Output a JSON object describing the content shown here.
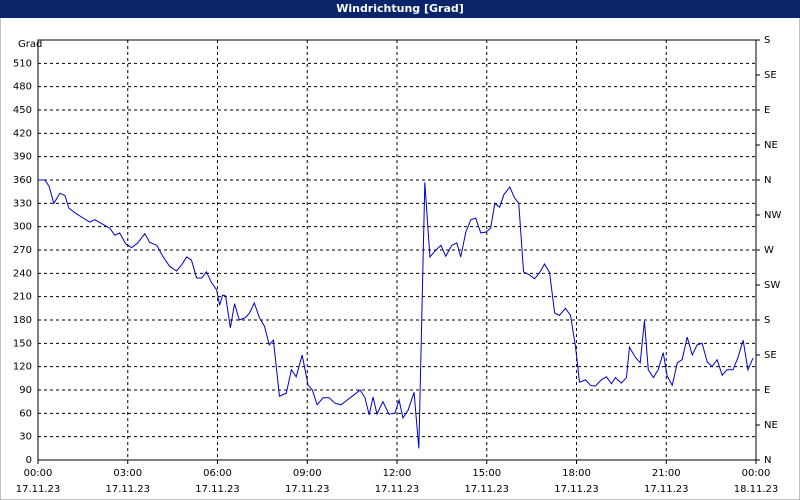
{
  "chart_data": {
    "type": "line",
    "title": "Windrichtung [Grad]",
    "y_label": "Grad",
    "color": "#0000cc",
    "grid": true,
    "xlim": [
      0,
      24
    ],
    "ylim": [
      0,
      540
    ],
    "y2lim": [
      0,
      540
    ],
    "xticks": [
      {
        "value": 0,
        "label": "00:00"
      },
      {
        "value": 3,
        "label": "03:00"
      },
      {
        "value": 6,
        "label": "06:00"
      },
      {
        "value": 9,
        "label": "09:00"
      },
      {
        "value": 12,
        "label": "12:00"
      },
      {
        "value": 15,
        "label": "15:00"
      },
      {
        "value": 18,
        "label": "18:00"
      },
      {
        "value": 21,
        "label": "21:00"
      },
      {
        "value": 24,
        "label": "00:00"
      }
    ],
    "xtick_dates": [
      "17.11.23",
      "17.11.23",
      "17.11.23",
      "17.11.23",
      "17.11.23",
      "17.11.23",
      "17.11.23",
      "17.11.23",
      "18.11.23"
    ],
    "yticks": [
      0,
      30,
      60,
      90,
      120,
      150,
      180,
      210,
      240,
      270,
      300,
      330,
      360,
      390,
      420,
      450,
      480,
      510
    ],
    "y2ticks": [
      {
        "value": 0,
        "label": "N"
      },
      {
        "value": 45,
        "label": "NE"
      },
      {
        "value": 90,
        "label": "E"
      },
      {
        "value": 135,
        "label": "SE"
      },
      {
        "value": 180,
        "label": "S"
      },
      {
        "value": 225,
        "label": "SW"
      },
      {
        "value": 270,
        "label": "W"
      },
      {
        "value": 315,
        "label": "NW"
      },
      {
        "value": 360,
        "label": "N"
      },
      {
        "value": 405,
        "label": "NE"
      },
      {
        "value": 450,
        "label": "E"
      },
      {
        "value": 495,
        "label": "SE"
      },
      {
        "value": 540,
        "label": "S"
      }
    ],
    "x": [
      0,
      0.23,
      0.37,
      0.53,
      0.73,
      0.9,
      1.03,
      1.23,
      1.47,
      1.73,
      1.9,
      2.17,
      2.4,
      2.57,
      2.73,
      2.93,
      3.13,
      3.33,
      3.57,
      3.73,
      3.97,
      4.17,
      4.4,
      4.63,
      4.8,
      4.97,
      5.13,
      5.3,
      5.47,
      5.63,
      5.8,
      5.97,
      6.07,
      6.17,
      6.27,
      6.43,
      6.57,
      6.73,
      6.93,
      7.07,
      7.23,
      7.4,
      7.57,
      7.73,
      7.87,
      8.07,
      8.3,
      8.47,
      8.63,
      8.83,
      9.03,
      9.17,
      9.33,
      9.53,
      9.73,
      9.93,
      10.13,
      10.33,
      10.57,
      10.77,
      10.93,
      11.07,
      11.2,
      11.33,
      11.53,
      11.73,
      11.93,
      12.07,
      12.2,
      12.37,
      12.57,
      12.73,
      12.93,
      13.1,
      13.3,
      13.47,
      13.63,
      13.83,
      14,
      14.13,
      14.3,
      14.47,
      14.63,
      14.8,
      14.97,
      15.13,
      15.27,
      15.43,
      15.57,
      15.77,
      15.93,
      16.07,
      16.23,
      16.43,
      16.6,
      16.77,
      16.93,
      17.1,
      17.27,
      17.43,
      17.63,
      17.8,
      17.97,
      18.1,
      18.3,
      18.47,
      18.63,
      18.83,
      19,
      19.17,
      19.3,
      19.5,
      19.67,
      19.77,
      19.97,
      20.13,
      20.27,
      20.4,
      20.57,
      20.73,
      20.9,
      21.03,
      21.2,
      21.37,
      21.53,
      21.7,
      21.87,
      22.03,
      22.2,
      22.37,
      22.53,
      22.7,
      22.87,
      23.03,
      23.23,
      23.4,
      23.57,
      23.73,
      23.9
    ],
    "values": [
      360,
      360,
      352,
      330,
      343,
      340,
      324,
      318,
      312,
      306,
      309,
      303,
      298,
      289,
      292,
      278,
      273,
      279,
      291,
      280,
      276,
      262,
      249,
      243,
      251,
      261,
      257,
      234,
      234,
      242,
      228,
      219,
      199,
      212,
      211,
      170,
      201,
      180,
      183,
      189,
      202,
      183,
      172,
      148,
      154,
      82,
      86,
      116,
      107,
      135,
      96,
      90,
      71,
      80,
      80,
      73,
      71,
      77,
      84,
      90,
      80,
      58,
      81,
      59,
      75,
      59,
      60,
      77,
      54,
      64,
      87,
      15,
      357,
      261,
      270,
      276,
      262,
      276,
      279,
      261,
      293,
      309,
      311,
      292,
      293,
      298,
      330,
      325,
      341,
      351,
      337,
      330,
      242,
      238,
      233,
      241,
      252,
      241,
      189,
      186,
      195,
      186,
      145,
      100,
      103,
      96,
      95,
      103,
      107,
      98,
      106,
      99,
      106,
      145,
      132,
      125,
      179,
      116,
      106,
      116,
      138,
      108,
      96,
      125,
      129,
      158,
      135,
      148,
      150,
      126,
      120,
      129,
      109,
      116,
      116,
      132,
      154,
      116,
      131
    ]
  }
}
